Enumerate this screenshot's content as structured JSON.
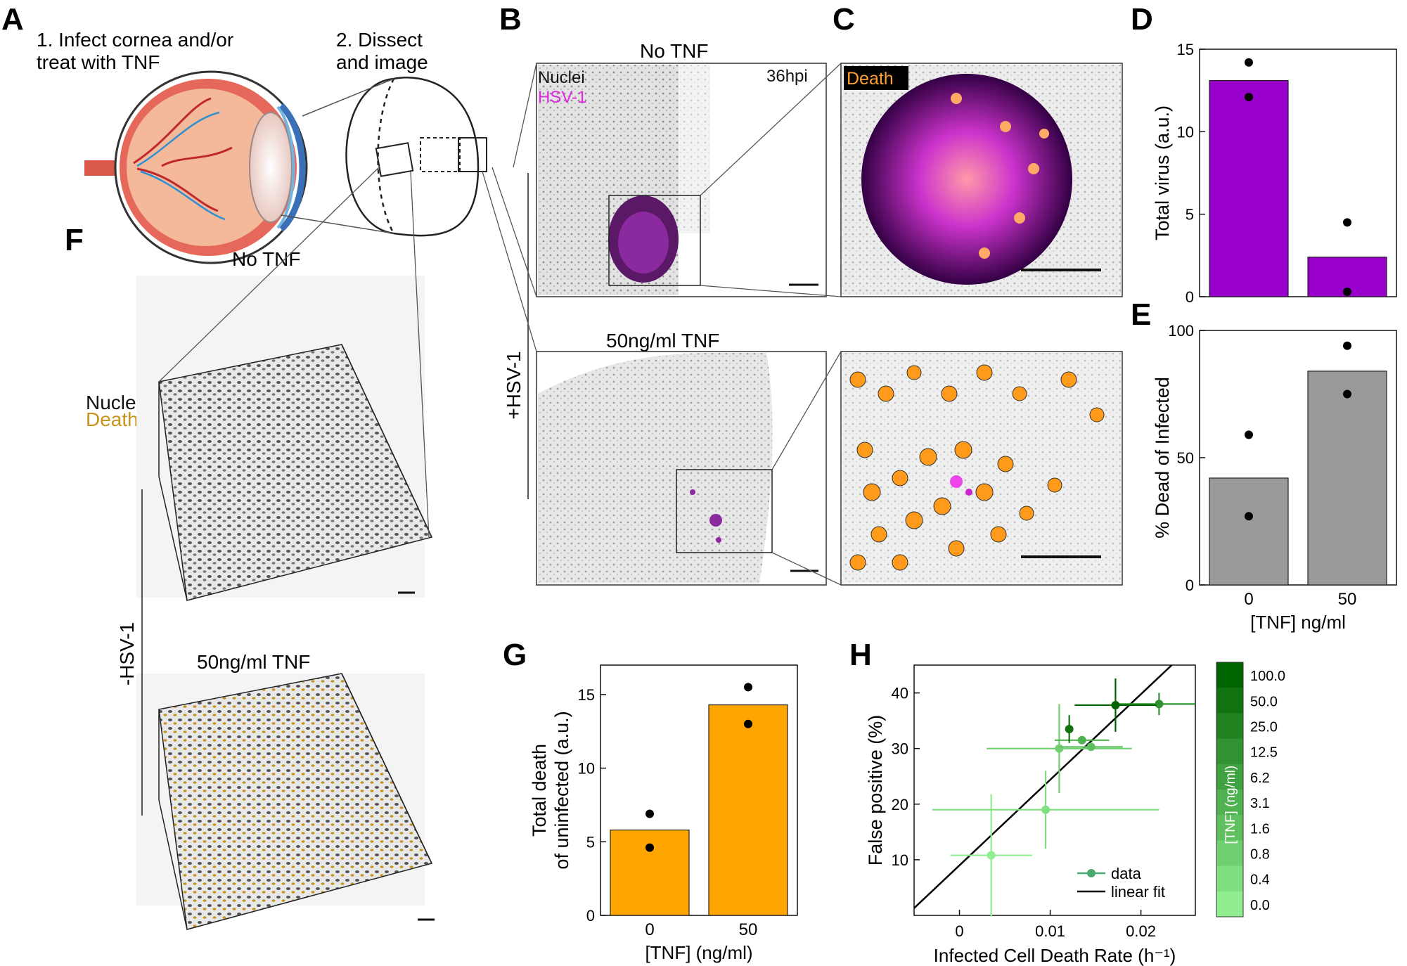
{
  "panels": {
    "A": {
      "letter": "A",
      "step1_line1": "1. Infect cornea and/or",
      "step1_line2": "treat with TNF",
      "step2_line1": "2. Dissect",
      "step2_line2": "and image"
    },
    "B": {
      "letter": "B",
      "top_title": "No TNF",
      "bottom_title": "50ng/ml TNF",
      "label_nuclei": "Nuclei",
      "label_hsv": "HSV-1",
      "time_label": "36hpi",
      "side_label": "+HSV-1"
    },
    "C": {
      "letter": "C",
      "label_death": "Death"
    },
    "D": {
      "letter": "D"
    },
    "E": {
      "letter": "E"
    },
    "F": {
      "letter": "F",
      "top_title": "No TNF",
      "bottom_title": "50ng/ml TNF",
      "label_nuclei": "Nuclei",
      "label_death": "Death",
      "side_label": "-HSV-1"
    },
    "G": {
      "letter": "G"
    },
    "H": {
      "letter": "H"
    }
  },
  "colors": {
    "purple": "#9900cc",
    "gray_bar": "#999999",
    "orange": "#ffa500",
    "dark_green": "#006400",
    "light_green": "#90ee90"
  },
  "chart_data": [
    {
      "id": "D",
      "type": "bar",
      "categories": [
        "0",
        "50"
      ],
      "values": [
        13.1,
        2.4
      ],
      "points": [
        [
          14.2,
          12.1
        ],
        [
          4.5,
          0.3
        ]
      ],
      "xlabel": "",
      "ylabel": "Total virus (a.u.)",
      "ylim": [
        0,
        15
      ],
      "yticks": [
        0,
        5,
        10,
        15
      ],
      "color": "#9900cc"
    },
    {
      "id": "E",
      "type": "bar",
      "categories": [
        "0",
        "50"
      ],
      "values": [
        42,
        84
      ],
      "points": [
        [
          59,
          27
        ],
        [
          94,
          75
        ]
      ],
      "xlabel": "[TNF] ng/ml",
      "ylabel": "% Dead of Infected",
      "ylim": [
        0,
        100
      ],
      "yticks": [
        0,
        50,
        100
      ],
      "color": "#999999"
    },
    {
      "id": "G",
      "type": "bar",
      "categories": [
        "0",
        "50"
      ],
      "values": [
        5.8,
        14.3
      ],
      "points": [
        [
          6.9,
          4.6
        ],
        [
          15.5,
          13.0
        ]
      ],
      "xlabel": "[TNF] (ng/ml)",
      "ylabel_line1": "Total death",
      "ylabel_line2": "of uninfected (a.u.)",
      "ylim": [
        0,
        17
      ],
      "yticks": [
        0,
        5,
        10,
        15
      ],
      "color": "#ffa500"
    },
    {
      "id": "H",
      "type": "scatter",
      "xlabel": "Infected Cell Death Rate (h⁻¹)",
      "ylabel": "False positive (%)",
      "xlim": [
        -0.005,
        0.026
      ],
      "ylim": [
        0,
        45
      ],
      "xticks": [
        0,
        0.01,
        0.02
      ],
      "xtick_labels": [
        "0",
        "0.01",
        "0.02"
      ],
      "yticks": [
        10,
        20,
        30,
        40
      ],
      "series": [
        {
          "name": "data",
          "points": [
            {
              "x": 0.0035,
              "y": 10.8,
              "xerr": 0.0045,
              "yerr": 11.0,
              "tnf": 0.0
            },
            {
              "x": 0.0095,
              "y": 19.0,
              "xerr": 0.0125,
              "yerr": 7.0,
              "tnf": 0.4
            },
            {
              "x": 0.011,
              "y": 30.0,
              "xerr": 0.008,
              "yerr": 8.0,
              "tnf": 0.8
            },
            {
              "x": 0.0145,
              "y": 30.3,
              "xerr": 0.0035,
              "yerr": 0.6,
              "tnf": 1.6
            },
            {
              "x": 0.0135,
              "y": 31.5,
              "xerr": 0.003,
              "yerr": 0.6,
              "tnf": 3.1
            },
            {
              "x": 0.0121,
              "y": 33.5,
              "xerr": 0.0003,
              "yerr": 2.5,
              "tnf": 50.0
            },
            {
              "x": 0.022,
              "y": 38.0,
              "xerr": 0.0045,
              "yerr": 2.0,
              "tnf": 12.5
            },
            {
              "x": 0.0172,
              "y": 37.8,
              "xerr": 0.0045,
              "yerr": 4.8,
              "tnf": 100.0
            }
          ]
        },
        {
          "name": "linear fit",
          "line": [
            [
              -0.005,
              1.3
            ],
            [
              0.0234,
              45.0
            ]
          ]
        }
      ],
      "legend": [
        {
          "label": "data",
          "kind": "marker"
        },
        {
          "label": "linear fit",
          "kind": "line"
        }
      ],
      "colorbar": {
        "title": "[TNF] (ng/ml)",
        "labels": [
          "100.0",
          "50.0",
          "25.0",
          "12.5",
          "6.2",
          "3.1",
          "1.6",
          "0.8",
          "0.4",
          "0.0"
        ]
      }
    }
  ]
}
